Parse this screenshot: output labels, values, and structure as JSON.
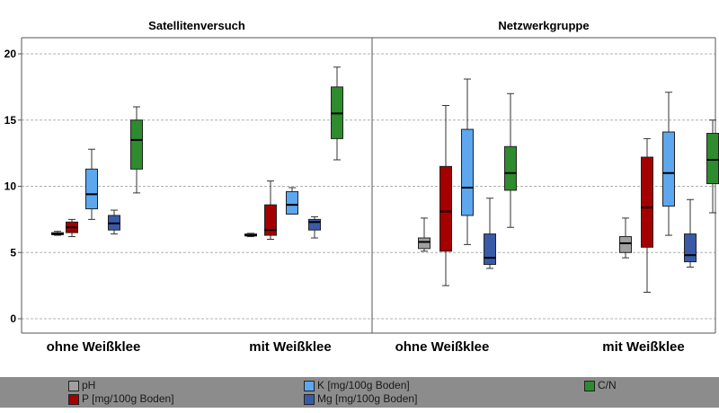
{
  "chart_data": {
    "type": "boxplot",
    "y_axis": {
      "ylim": [
        -1,
        21
      ],
      "ticks": [
        0,
        5,
        10,
        15,
        20
      ],
      "grid": true
    },
    "series": [
      {
        "key": "ph",
        "name": "pH",
        "color": "#a0a0a0"
      },
      {
        "key": "p",
        "name": "P [mg/100g Boden]",
        "color": "#a50000"
      },
      {
        "key": "k",
        "name": "K [mg/100g Boden]",
        "color": "#5ca7ee"
      },
      {
        "key": "mg",
        "name": "Mg [mg/100g Boden]",
        "color": "#3a5aa8"
      },
      {
        "key": "cn",
        "name": "C/N",
        "color": "#2e8b2e"
      }
    ],
    "panels": [
      {
        "title": "Satellitenversuch",
        "groups": [
          {
            "label": "ohne Weißklee",
            "boxes": [
              {
                "series": "pH",
                "min": 6.3,
                "q1": 6.35,
                "median": 6.4,
                "q3": 6.5,
                "max": 6.6
              },
              {
                "series": "P [mg/100g Boden]",
                "min": 6.2,
                "q1": 6.5,
                "median": 6.9,
                "q3": 7.3,
                "max": 7.5
              },
              {
                "series": "K [mg/100g Boden]",
                "min": 7.5,
                "q1": 8.3,
                "median": 9.4,
                "q3": 11.3,
                "max": 12.8
              },
              {
                "series": "Mg [mg/100g Boden]",
                "min": 6.4,
                "q1": 6.7,
                "median": 7.2,
                "q3": 7.8,
                "max": 8.2
              },
              {
                "series": "C/N",
                "min": 9.5,
                "q1": 11.3,
                "median": 13.5,
                "q3": 15.0,
                "max": 16.0
              }
            ]
          },
          {
            "label": "mit Weißklee",
            "boxes": [
              {
                "series": "pH",
                "min": 6.2,
                "q1": 6.25,
                "median": 6.3,
                "q3": 6.4,
                "max": 6.45
              },
              {
                "series": "P [mg/100g Boden]",
                "min": 6.0,
                "q1": 6.3,
                "median": 6.7,
                "q3": 8.6,
                "max": 10.4
              },
              {
                "series": "K [mg/100g Boden]",
                "min": 7.9,
                "q1": 7.9,
                "median": 8.6,
                "q3": 9.6,
                "max": 9.9
              },
              {
                "series": "Mg [mg/100g Boden]",
                "min": 6.1,
                "q1": 6.7,
                "median": 7.3,
                "q3": 7.5,
                "max": 7.7
              },
              {
                "series": "C/N",
                "min": 12.0,
                "q1": 13.6,
                "median": 15.5,
                "q3": 17.5,
                "max": 19.0
              }
            ]
          }
        ]
      },
      {
        "title": "Netzwerkgruppe",
        "groups": [
          {
            "label": "ohne Weißklee",
            "boxes": [
              {
                "series": "pH",
                "min": 5.1,
                "q1": 5.3,
                "median": 5.8,
                "q3": 6.1,
                "max": 7.6
              },
              {
                "series": "P [mg/100g Boden]",
                "min": 2.5,
                "q1": 5.1,
                "median": 8.1,
                "q3": 11.5,
                "max": 16.1
              },
              {
                "series": "K [mg/100g Boden]",
                "min": 5.6,
                "q1": 7.8,
                "median": 9.9,
                "q3": 14.3,
                "max": 18.1
              },
              {
                "series": "Mg [mg/100g Boden]",
                "min": 3.8,
                "q1": 4.1,
                "median": 4.6,
                "q3": 6.4,
                "max": 9.1
              },
              {
                "series": "C/N",
                "min": 6.9,
                "q1": 9.7,
                "median": 11.0,
                "q3": 13.0,
                "max": 17.0
              }
            ]
          },
          {
            "label": "mit Weißklee",
            "boxes": [
              {
                "series": "pH",
                "min": 4.6,
                "q1": 5.0,
                "median": 5.7,
                "q3": 6.2,
                "max": 7.6
              },
              {
                "series": "P [mg/100g Boden]",
                "min": 2.0,
                "q1": 5.4,
                "median": 8.4,
                "q3": 12.2,
                "max": 13.6
              },
              {
                "series": "K [mg/100g Boden]",
                "min": 6.3,
                "q1": 8.5,
                "median": 11.0,
                "q3": 14.1,
                "max": 17.1
              },
              {
                "series": "Mg [mg/100g Boden]",
                "min": 3.9,
                "q1": 4.3,
                "median": 4.8,
                "q3": 6.4,
                "max": 9.0
              },
              {
                "series": "C/N",
                "min": 8.0,
                "q1": 10.2,
                "median": 12.0,
                "q3": 14.0,
                "max": 15.0
              }
            ]
          }
        ]
      }
    ],
    "legend": [
      {
        "name": "pH",
        "color": "#a0a0a0"
      },
      {
        "name": "P [mg/100g Boden]",
        "color": "#a50000"
      },
      {
        "name": "K [mg/100g Boden]",
        "color": "#5ca7ee"
      },
      {
        "name": "Mg [mg/100g Boden]",
        "color": "#3a5aa8"
      },
      {
        "name": "C/N",
        "color": "#2e8b2e"
      }
    ]
  }
}
